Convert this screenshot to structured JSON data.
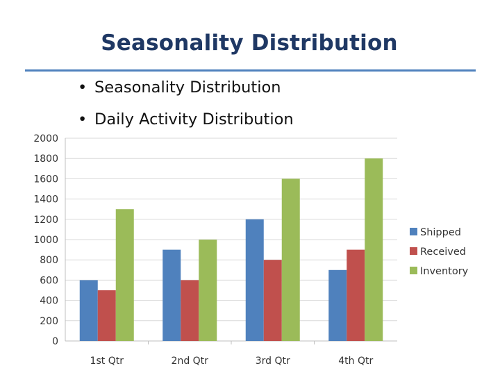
{
  "slide": {
    "title": "Seasonality Distribution",
    "bullets": [
      "Seasonality Distribution",
      "Daily Activity Distribution"
    ]
  },
  "chart_data": {
    "type": "bar",
    "title": "",
    "xlabel": "",
    "ylabel": "",
    "categories": [
      "1st Qtr",
      "2nd Qtr",
      "3rd Qtr",
      "4th Qtr"
    ],
    "series": [
      {
        "name": "Shipped",
        "values": [
          600,
          900,
          1200,
          700
        ],
        "color": "#4F81BD"
      },
      {
        "name": "Received",
        "values": [
          500,
          600,
          800,
          900
        ],
        "color": "#C0504D"
      },
      {
        "name": "Inventory",
        "values": [
          1300,
          1000,
          1600,
          1800
        ],
        "color": "#9BBB59"
      }
    ],
    "ylim": [
      0,
      2000
    ],
    "yticks": [
      0,
      200,
      400,
      600,
      800,
      1000,
      1200,
      1400,
      1600,
      1800,
      2000
    ],
    "grid": true,
    "legend": "right"
  }
}
